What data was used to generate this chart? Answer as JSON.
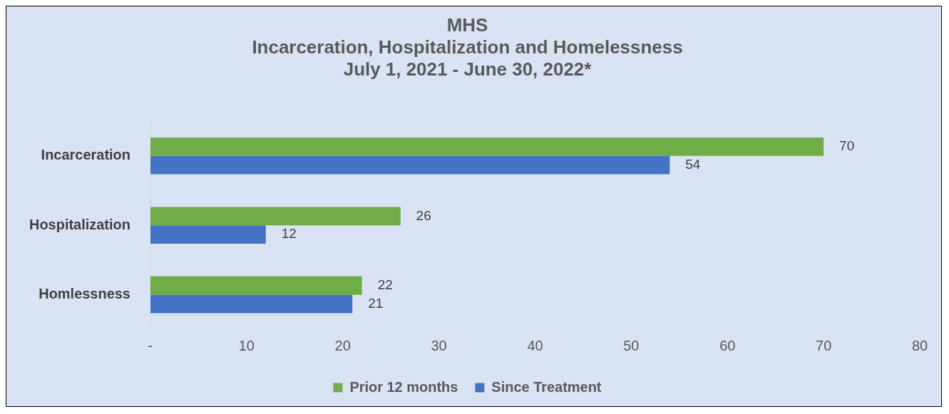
{
  "chart_data": {
    "type": "bar",
    "orientation": "horizontal",
    "title": [
      "MHS",
      "Incarceration, Hospitalization and Homelessness",
      "July 1, 2021 - June 30, 2022*"
    ],
    "categories": [
      "Incarceration",
      "Hospitalization",
      "Homlessness"
    ],
    "series": [
      {
        "name": "Prior 12 months",
        "color": "#70ad47",
        "values": [
          70,
          26,
          22
        ]
      },
      {
        "name": "Since Treatment",
        "color": "#4472c4",
        "values": [
          54,
          12,
          21
        ]
      }
    ],
    "xlim": [
      0,
      80
    ],
    "xticks": [
      {
        "value": 0,
        "label": "-"
      },
      10,
      20,
      30,
      40,
      50,
      60,
      70,
      80
    ],
    "grid": false,
    "legend": "bottom",
    "data_labels": true
  }
}
